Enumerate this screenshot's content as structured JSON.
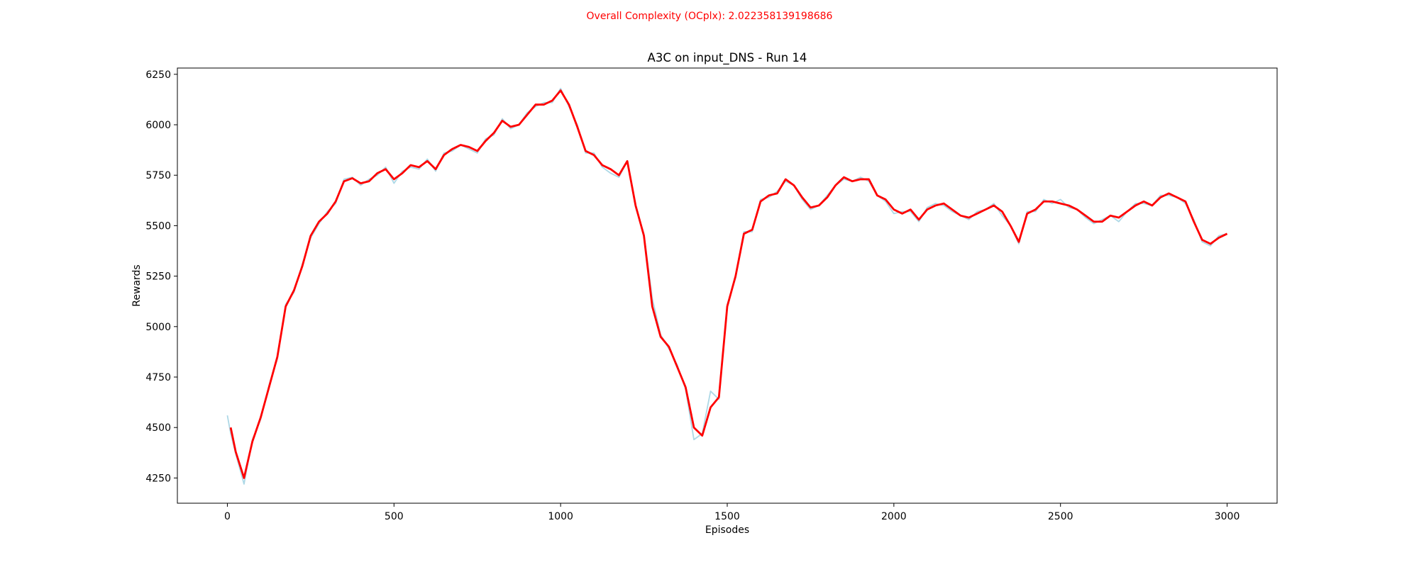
{
  "chart_data": {
    "type": "line",
    "suptitle": "Overall Complexity (OCplx): 2.022358139198686",
    "suptitle_color": "#ff0000",
    "title": "A3C on input_DNS - Run 14",
    "xlabel": "Episodes",
    "ylabel": "Rewards",
    "x": [
      0,
      10,
      25,
      50,
      75,
      100,
      125,
      150,
      175,
      200,
      225,
      250,
      275,
      300,
      325,
      350,
      375,
      400,
      425,
      450,
      475,
      500,
      525,
      550,
      575,
      600,
      625,
      650,
      675,
      700,
      725,
      750,
      775,
      800,
      825,
      850,
      875,
      900,
      925,
      950,
      975,
      1000,
      1025,
      1050,
      1075,
      1100,
      1125,
      1150,
      1175,
      1200,
      1225,
      1250,
      1275,
      1300,
      1325,
      1350,
      1375,
      1400,
      1425,
      1450,
      1475,
      1500,
      1525,
      1550,
      1575,
      1600,
      1625,
      1650,
      1675,
      1700,
      1725,
      1750,
      1775,
      1800,
      1825,
      1850,
      1875,
      1900,
      1925,
      1950,
      1975,
      2000,
      2025,
      2050,
      2075,
      2100,
      2125,
      2150,
      2175,
      2200,
      2225,
      2250,
      2275,
      2300,
      2325,
      2350,
      2375,
      2400,
      2425,
      2450,
      2475,
      2500,
      2525,
      2550,
      2575,
      2600,
      2625,
      2650,
      2675,
      2700,
      2725,
      2750,
      2775,
      2800,
      2825,
      2850,
      2875,
      2900,
      2925,
      2950,
      2975,
      3000
    ],
    "series": [
      {
        "color": "#add8e6",
        "width": 1.8,
        "values": [
          4560,
          4470,
          4370,
          4220,
          4440,
          4540,
          4710,
          4840,
          5110,
          5170,
          5310,
          5440,
          5510,
          5570,
          5610,
          5730,
          5740,
          5700,
          5730,
          5750,
          5790,
          5710,
          5770,
          5790,
          5780,
          5830,
          5770,
          5860,
          5870,
          5900,
          5880,
          5860,
          5930,
          5950,
          6030,
          5980,
          6000,
          6060,
          6090,
          6110,
          6110,
          6180,
          6090,
          6000,
          5860,
          5860,
          5790,
          5760,
          5740,
          5820,
          5590,
          5460,
          5140,
          4960,
          4890,
          4810,
          4690,
          4440,
          4470,
          4680,
          4640,
          5110,
          5240,
          5470,
          5470,
          5630,
          5640,
          5670,
          5720,
          5700,
          5630,
          5580,
          5600,
          5650,
          5700,
          5730,
          5720,
          5740,
          5720,
          5650,
          5620,
          5560,
          5570,
          5570,
          5520,
          5590,
          5610,
          5600,
          5570,
          5550,
          5530,
          5570,
          5580,
          5610,
          5550,
          5500,
          5410,
          5570,
          5570,
          5630,
          5610,
          5630,
          5590,
          5580,
          5540,
          5510,
          5530,
          5550,
          5520,
          5570,
          5610,
          5610,
          5600,
          5650,
          5650,
          5640,
          5610,
          5530,
          5420,
          5400,
          5450,
          5460
        ]
      },
      {
        "color": "#ff0000",
        "width": 2.8,
        "values": [
          null,
          4500,
          4380,
          4250,
          4430,
          4550,
          4700,
          4850,
          5100,
          5180,
          5300,
          5450,
          5520,
          5560,
          5620,
          5720,
          5735,
          5710,
          5720,
          5760,
          5780,
          5730,
          5760,
          5800,
          5790,
          5820,
          5780,
          5850,
          5880,
          5900,
          5890,
          5870,
          5920,
          5960,
          6020,
          5990,
          6000,
          6050,
          6100,
          6100,
          6120,
          6170,
          6100,
          5990,
          5870,
          5850,
          5800,
          5780,
          5750,
          5820,
          5600,
          5450,
          5100,
          4950,
          4900,
          4800,
          4700,
          4500,
          4460,
          4600,
          4650,
          5100,
          5250,
          5460,
          5480,
          5620,
          5650,
          5660,
          5730,
          5700,
          5640,
          5590,
          5600,
          5640,
          5700,
          5740,
          5720,
          5730,
          5730,
          5650,
          5630,
          5580,
          5560,
          5580,
          5530,
          5580,
          5600,
          5610,
          5580,
          5550,
          5540,
          5560,
          5580,
          5600,
          5570,
          5500,
          5420,
          5560,
          5580,
          5620,
          5620,
          5610,
          5600,
          5580,
          5550,
          5520,
          5520,
          5550,
          5540,
          5570,
          5600,
          5620,
          5600,
          5640,
          5660,
          5640,
          5620,
          5520,
          5430,
          5410,
          5440,
          5460
        ]
      }
    ],
    "xlim": [
      -150,
      3150
    ],
    "xticks": [
      0,
      500,
      1000,
      1500,
      2000,
      2500,
      3000
    ],
    "ylim": [
      4125,
      6281
    ],
    "yticks": [
      4250,
      4500,
      4750,
      5000,
      5250,
      5500,
      5750,
      6000,
      6250
    ],
    "grid": false
  }
}
